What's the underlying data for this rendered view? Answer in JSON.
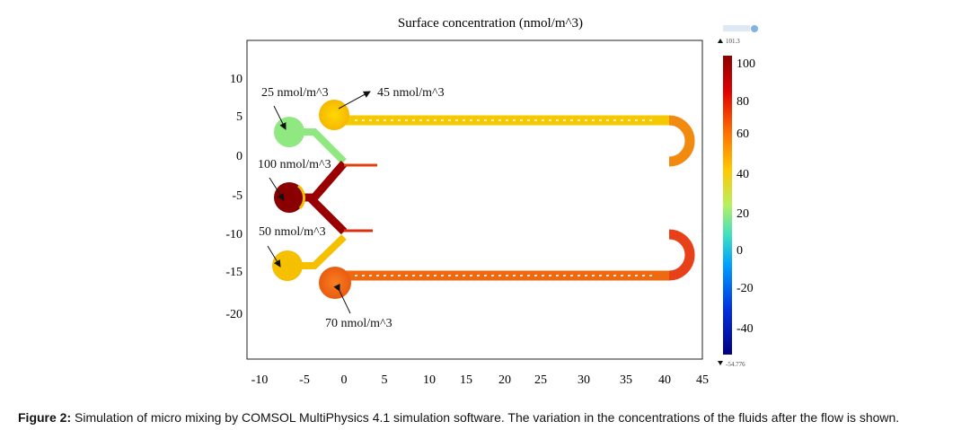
{
  "figure": {
    "title": "Surface concentration (nmol/m^3)",
    "x_ticks": [
      "-10",
      "-5",
      "0",
      "5",
      "10",
      "15",
      "20",
      "25",
      "30",
      "35",
      "40",
      "45"
    ],
    "y_ticks": [
      "10",
      "5",
      "0",
      "-5",
      "-10",
      "-15",
      "-20"
    ],
    "colorbar": {
      "max_label": "101.3",
      "min_label": "-54.776",
      "ticks": [
        "100",
        "80",
        "60",
        "40",
        "20",
        "0",
        "-20",
        "-40"
      ],
      "colors": [
        "#8b0000",
        "#e00000",
        "#ff6a00",
        "#ffc800",
        "#c8f050",
        "#40e0c0",
        "#00a0ff",
        "#0030e0",
        "#000080"
      ]
    },
    "annotations": {
      "inlet_25": "25 nmol/m^3",
      "inlet_45": "45 nmol/m^3",
      "inlet_100": "100 nmol/m^3",
      "inlet_50": "50 nmol/m^3",
      "inlet_70": "70 nmol/m^3"
    }
  },
  "caption": {
    "label": "Figure 2:",
    "text": " Simulation of micro mixing by COMSOL MultiPhysics 4.1 simulation software. The variation in the concentrations of the fluids after the flow is shown."
  }
}
